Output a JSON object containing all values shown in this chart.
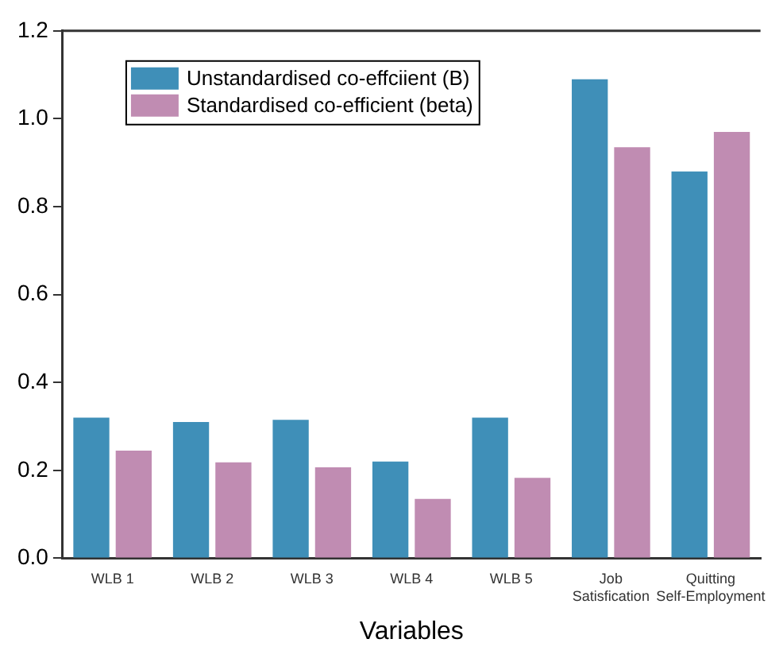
{
  "chart_data": {
    "type": "bar",
    "xlabel": "Variables",
    "categories": [
      "WLB 1",
      "WLB 2",
      "WLB 3",
      "WLB 4",
      "WLB 5",
      "Job\nSatisfication",
      "Quitting\nSelf-Employment"
    ],
    "series": [
      {
        "name": "Unstandardised co-effciient (B)",
        "color": "#3f8fb8",
        "values": [
          0.32,
          0.31,
          0.315,
          0.22,
          0.32,
          1.09,
          0.88
        ]
      },
      {
        "name": "Standardised co-efficient (beta)",
        "color": "#c08cb2",
        "values": [
          0.245,
          0.218,
          0.207,
          0.135,
          0.183,
          0.935,
          0.97
        ]
      }
    ],
    "ylim": [
      0,
      1.2
    ],
    "yticks": [
      {
        "value": 0,
        "label": "0.0"
      },
      {
        "value": 0.2,
        "label": "0.2"
      },
      {
        "value": 0.4,
        "label": "0.4"
      },
      {
        "value": 0.6,
        "label": "0.6"
      },
      {
        "value": 0.8,
        "label": "0.8"
      },
      {
        "value": 1.0,
        "label": "1.0"
      },
      {
        "value": 1.2,
        "label": "1.2"
      }
    ],
    "grid": false,
    "legend": "top left"
  }
}
